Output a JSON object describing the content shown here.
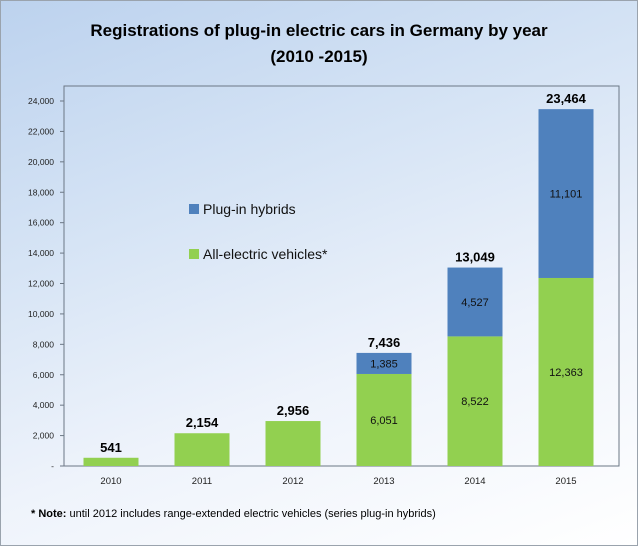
{
  "chart_data": {
    "type": "bar",
    "stacked": true,
    "title": "Registrations of plug-in electric cars in Germany by year",
    "subtitle": "(2010 -2015)",
    "xlabel": "",
    "ylabel": "",
    "ylim": [
      0,
      24000
    ],
    "yticks": [
      "-",
      "2,000",
      "4,000",
      "6,000",
      "8,000",
      "10,000",
      "12,000",
      "14,000",
      "16,000",
      "18,000",
      "20,000",
      "22,000",
      "24,000"
    ],
    "categories": [
      "2010",
      "2011",
      "2012",
      "2013",
      "2014",
      "2015"
    ],
    "series": [
      {
        "name": "All-electric vehicles*",
        "color": "#92d050",
        "values": [
          541,
          2154,
          2956,
          6051,
          8522,
          12363
        ],
        "labels": [
          "",
          "",
          "",
          "6,051",
          "8,522",
          "12,363"
        ]
      },
      {
        "name": "Plug-in hybrids",
        "color": "#4f81bd",
        "values": [
          0,
          0,
          0,
          1385,
          4527,
          11101
        ],
        "labels": [
          "",
          "",
          "",
          "1,385",
          "4,527",
          "11,101"
        ]
      }
    ],
    "totals": [
      "541",
      "2,154",
      "2,956",
      "7,436",
      "13,049",
      "23,464"
    ],
    "legend_position": "center-left",
    "grid": false
  },
  "note": {
    "marker": "* Note:",
    "text": " until 2012 includes range-extended electric vehicles (series plug-in hybrids)"
  }
}
